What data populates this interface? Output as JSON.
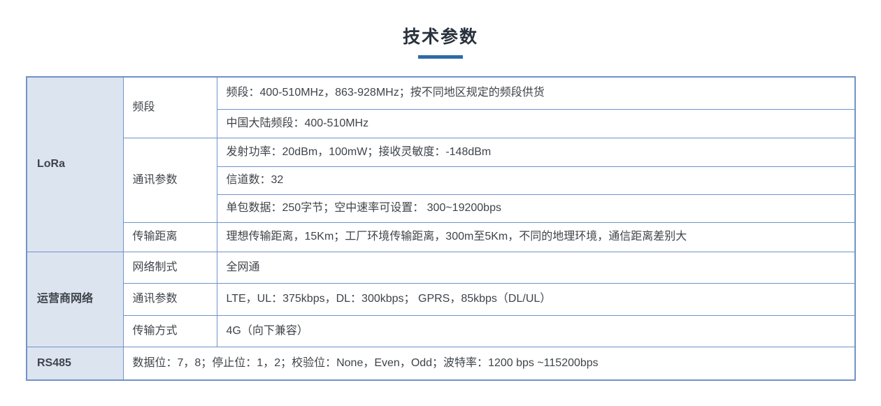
{
  "page": {
    "title": "技术参数",
    "accent_color": "#2e6ba8",
    "table_border_color": "#7093c9",
    "section_bg_color": "#dce4f0"
  },
  "table": {
    "sections": [
      {
        "name": "LoRa",
        "groups": [
          {
            "label": "频段",
            "rows": [
              "频段：400-510MHz，863-928MHz；按不同地区规定的频段供货",
              "中国大陆频段：400-510MHz"
            ]
          },
          {
            "label": "通讯参数",
            "rows": [
              "发射功率：20dBm，100mW；接收灵敏度：-148dBm",
              "信道数：32",
              "单包数据：250字节；空中速率可设置： 300~19200bps"
            ]
          },
          {
            "label": "传输距离",
            "rows": [
              "理想传输距离，15Km；工厂环境传输距离，300m至5Km，不同的地理环境，通信距离差别大"
            ]
          }
        ]
      },
      {
        "name": "运营商网络",
        "groups": [
          {
            "label": "网络制式",
            "rows": [
              "全网通"
            ]
          },
          {
            "label": "通讯参数",
            "rows": [
              "LTE，UL：375kbps，DL：300kbps； GPRS，85kbps（DL/UL）"
            ]
          },
          {
            "label": "传输方式",
            "rows": [
              "4G（向下兼容）"
            ]
          }
        ]
      },
      {
        "name": "RS485",
        "full_row": "数据位：7，8；停止位：1，2；校验位：None，Even，Odd；波特率：1200 bps ~115200bps"
      }
    ]
  }
}
